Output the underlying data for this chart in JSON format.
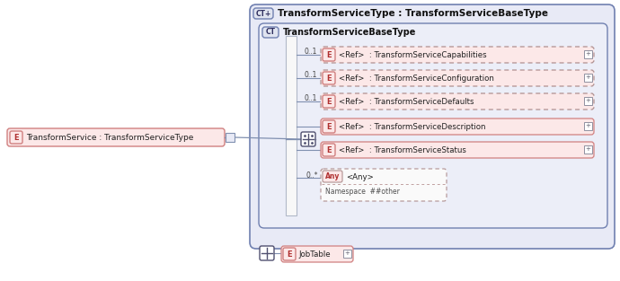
{
  "bg_color": "#ffffff",
  "outer_bg": "#e8eaf6",
  "inner_bg": "#e8eaf6",
  "element_fill": "#fce8e8",
  "element_border": "#d08080",
  "dashed_border": "#b09090",
  "ct_fill": "#e0e4f0",
  "ct_border": "#7080b0",
  "connector_color": "#505070",
  "title": "TransformServiceType : TransformServiceBaseType",
  "base_type_label": "TransformServiceBaseType",
  "main_element_label": "TransformService : TransformServiceType",
  "elements": [
    {
      "label": "<Ref>  : TransformServiceCapabilities",
      "dashed": true,
      "multiplicity": "0..1"
    },
    {
      "label": "<Ref>  : TransformServiceConfiguration",
      "dashed": true,
      "multiplicity": "0..1"
    },
    {
      "label": "<Ref>  : TransformServiceDefaults",
      "dashed": true,
      "multiplicity": "0..1"
    },
    {
      "label": "<Ref>  : TransformServiceDescription",
      "dashed": false,
      "multiplicity": ""
    },
    {
      "label": "<Ref>  : TransformServiceStatus",
      "dashed": false,
      "multiplicity": ""
    }
  ],
  "any_label": "<Any>",
  "any_multiplicity": "0..*",
  "any_namespace": "Namespace  ##other",
  "job_table_label": "JobTable"
}
